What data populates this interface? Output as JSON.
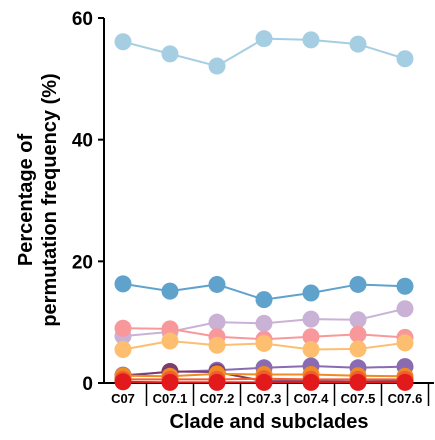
{
  "chart_data": {
    "type": "line",
    "title": "",
    "xlabel": "Clade and subclades",
    "ylabel_lines": [
      "Percentage of",
      "permutation frequency (%)"
    ],
    "categories": [
      "C07",
      "C07.1",
      "C07.2",
      "C07.3",
      "C07.4",
      "C07.5",
      "C07.6"
    ],
    "ylim": [
      0,
      60
    ],
    "yticks": [
      0,
      20,
      40,
      60
    ],
    "grid": false,
    "legend": "none",
    "series": [
      {
        "color": "#a6cee3",
        "values": [
          56.1,
          54.1,
          52.1,
          56.6,
          56.4,
          55.7,
          53.3
        ]
      },
      {
        "color": "#5fa2cc",
        "values": [
          16.3,
          15.1,
          16.2,
          13.7,
          14.8,
          16.2,
          15.9
        ]
      },
      {
        "color": "#c9b2d6",
        "values": [
          7.7,
          8.4,
          10.0,
          9.8,
          10.5,
          10.4,
          12.2
        ]
      },
      {
        "color": "#f9989a",
        "values": [
          9.0,
          8.9,
          7.6,
          7.2,
          7.6,
          8.0,
          7.5
        ]
      },
      {
        "color": "#fdbf6f",
        "values": [
          5.5,
          6.9,
          6.2,
          6.5,
          5.5,
          5.6,
          6.6
        ]
      },
      {
        "color": "#8a6bb1",
        "values": [
          1.3,
          1.8,
          2.1,
          2.5,
          2.8,
          2.5,
          2.7
        ]
      },
      {
        "color": "#7d3c6e",
        "values": [
          1.1,
          1.9,
          1.8,
          0.3,
          0.3,
          0.2,
          0.4
        ]
      },
      {
        "color": "#f08a24",
        "values": [
          1.2,
          1.1,
          1.5,
          1.4,
          1.4,
          1.2,
          1.1
        ]
      },
      {
        "color": "#ef5e2e",
        "values": [
          0.6,
          0.6,
          0.6,
          0.7,
          0.6,
          0.6,
          0.6
        ]
      },
      {
        "color": "#e31a1c",
        "values": [
          0.2,
          0.1,
          0.1,
          0.1,
          0.1,
          0.1,
          0.1
        ]
      }
    ]
  }
}
